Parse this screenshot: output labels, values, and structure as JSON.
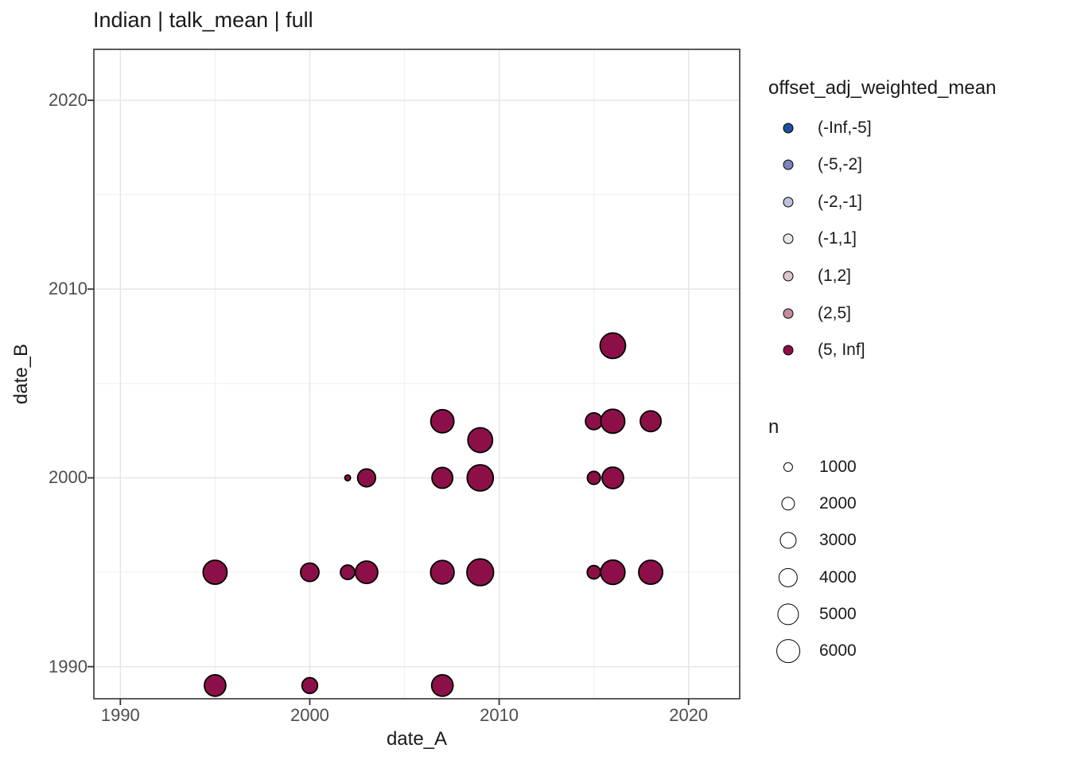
{
  "chart_data": {
    "type": "scatter",
    "title": "Indian | talk_mean | full",
    "xlabel": "date_A",
    "ylabel": "date_B",
    "xlim": [
      1988.6,
      2022.7
    ],
    "ylim": [
      1988.3,
      2022.7
    ],
    "x_ticks": [
      {
        "value": 1990,
        "label": "1990"
      },
      {
        "value": 2000,
        "label": "2000"
      },
      {
        "value": 2010,
        "label": "2010"
      },
      {
        "value": 2020,
        "label": "2020"
      }
    ],
    "y_ticks": [
      {
        "value": 1990,
        "label": "1990"
      },
      {
        "value": 2000,
        "label": "2000"
      },
      {
        "value": 2010,
        "label": "2010"
      },
      {
        "value": 2020,
        "label": "2020"
      }
    ],
    "x_minor_ticks": [
      1995,
      2005,
      2015
    ],
    "y_minor_ticks": [
      1995,
      2005,
      2015
    ],
    "grid": "on",
    "legend_position": "right",
    "points": [
      {
        "x": 1995,
        "y": 1989,
        "n": 4900,
        "bin": "(5, Inf]"
      },
      {
        "x": 2000,
        "y": 1989,
        "n": 2600,
        "bin": "(5, Inf]"
      },
      {
        "x": 2007,
        "y": 1989,
        "n": 4900,
        "bin": "(5, Inf]"
      },
      {
        "x": 1995,
        "y": 1995,
        "n": 6100,
        "bin": "(5, Inf]"
      },
      {
        "x": 2000,
        "y": 1995,
        "n": 3600,
        "bin": "(5, Inf]"
      },
      {
        "x": 2002,
        "y": 1995,
        "n": 2200,
        "bin": "(5, Inf]"
      },
      {
        "x": 2003,
        "y": 1995,
        "n": 5300,
        "bin": "(5, Inf]"
      },
      {
        "x": 2007,
        "y": 1995,
        "n": 5900,
        "bin": "(5, Inf]"
      },
      {
        "x": 2009,
        "y": 1995,
        "n": 7600,
        "bin": "(5, Inf]"
      },
      {
        "x": 2015,
        "y": 1995,
        "n": 1900,
        "bin": "(5, Inf]"
      },
      {
        "x": 2016,
        "y": 1995,
        "n": 6300,
        "bin": "(5, Inf]"
      },
      {
        "x": 2018,
        "y": 1995,
        "n": 6100,
        "bin": "(5, Inf]"
      },
      {
        "x": 2002,
        "y": 2000,
        "n": 350,
        "bin": "(5, Inf]"
      },
      {
        "x": 2003,
        "y": 2000,
        "n": 3400,
        "bin": "(5, Inf]"
      },
      {
        "x": 2007,
        "y": 2000,
        "n": 4600,
        "bin": "(5, Inf]"
      },
      {
        "x": 2009,
        "y": 2000,
        "n": 7300,
        "bin": "(5, Inf]"
      },
      {
        "x": 2015,
        "y": 2000,
        "n": 1800,
        "bin": "(5, Inf]"
      },
      {
        "x": 2016,
        "y": 2000,
        "n": 4900,
        "bin": "(5, Inf]"
      },
      {
        "x": 2009,
        "y": 2002,
        "n": 6500,
        "bin": "(5, Inf]"
      },
      {
        "x": 2007,
        "y": 2003,
        "n": 5700,
        "bin": "(5, Inf]"
      },
      {
        "x": 2015,
        "y": 2003,
        "n": 3000,
        "bin": "(5, Inf]"
      },
      {
        "x": 2016,
        "y": 2003,
        "n": 6100,
        "bin": "(5, Inf]"
      },
      {
        "x": 2018,
        "y": 2003,
        "n": 4600,
        "bin": "(5, Inf]"
      },
      {
        "x": 2016,
        "y": 2007,
        "n": 6900,
        "bin": "(5, Inf]"
      }
    ]
  },
  "legend_color": {
    "title": "offset_adj_weighted_mean",
    "items": [
      {
        "label": "(-Inf,-5]",
        "color": "#1D4F9F"
      },
      {
        "label": "(-5,-2]",
        "color": "#7B84BB"
      },
      {
        "label": "(-2,-1]",
        "color": "#BDC1DA"
      },
      {
        "label": "(-1,1]",
        "color": "#E9E7E8"
      },
      {
        "label": "(1,2]",
        "color": "#DFC5CD"
      },
      {
        "label": "(2,5]",
        "color": "#C58B9B"
      },
      {
        "label": "(5, Inf]",
        "color": "#8C1047"
      }
    ]
  },
  "legend_size": {
    "title": "n",
    "items": [
      {
        "n": 1000,
        "label": "1000"
      },
      {
        "n": 2000,
        "label": "2000"
      },
      {
        "n": 3000,
        "label": "3000"
      },
      {
        "n": 4000,
        "label": "4000"
      },
      {
        "n": 5000,
        "label": "5000"
      },
      {
        "n": 6000,
        "label": "6000"
      }
    ]
  },
  "colors": {
    "grid_major": "#E4E4E4",
    "grid_minor": "#F1F1F1",
    "panel_border": "#333333",
    "tick_mark": "#333333",
    "tick_label": "#4d4d4d",
    "point_stroke": "#000000"
  }
}
